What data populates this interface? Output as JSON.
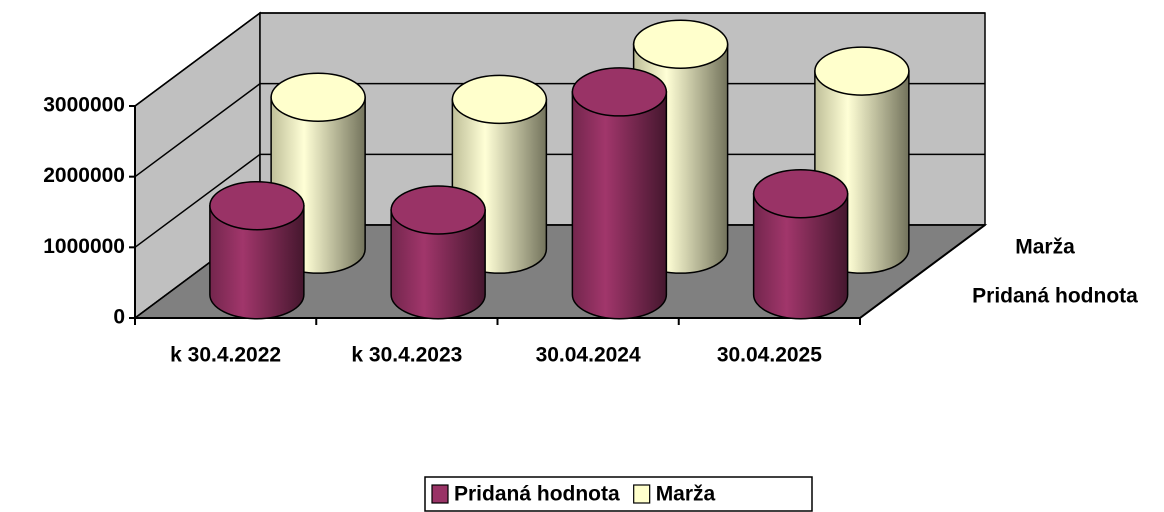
{
  "chart_data": {
    "type": "bar3d-cylinder",
    "categories": [
      "k 30.4.2022",
      "k 30.4.2023",
      "30.04.2024",
      "30.04.2025"
    ],
    "series": [
      {
        "name": "Pridaná hodnota",
        "color": "#993366",
        "values": [
          1260000,
          1200000,
          2870000,
          1430000
        ]
      },
      {
        "name": "Marža",
        "color": "#ffffcc",
        "values": [
          2150000,
          2120000,
          2900000,
          2520000
        ]
      }
    ],
    "ylim": [
      0,
      3000000
    ],
    "yticks": [
      0,
      1000000,
      2000000,
      3000000
    ],
    "grid": true,
    "legend": "bottom"
  }
}
